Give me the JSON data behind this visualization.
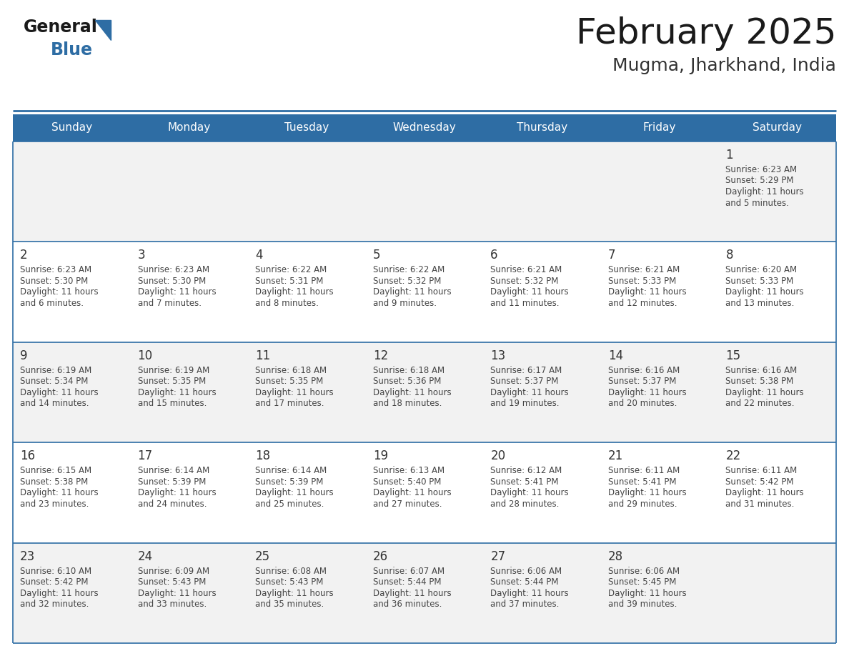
{
  "title": "February 2025",
  "subtitle": "Mugma, Jharkhand, India",
  "header_bg_color": "#2E6DA4",
  "header_text_color": "#FFFFFF",
  "cell_bg_even": "#F2F2F2",
  "cell_bg_odd": "#FFFFFF",
  "border_color": "#2E6DA4",
  "outer_border_color": "#2E6DA4",
  "day_names": [
    "Sunday",
    "Monday",
    "Tuesday",
    "Wednesday",
    "Thursday",
    "Friday",
    "Saturday"
  ],
  "title_color": "#1a1a1a",
  "subtitle_color": "#333333",
  "day_number_color": "#333333",
  "cell_text_color": "#444444",
  "logo_text_color": "#1a1a1a",
  "logo_blue_color": "#2E6DA4",
  "weeks": [
    [
      {
        "day": null,
        "sunrise": null,
        "sunset": null,
        "daylight": null
      },
      {
        "day": null,
        "sunrise": null,
        "sunset": null,
        "daylight": null
      },
      {
        "day": null,
        "sunrise": null,
        "sunset": null,
        "daylight": null
      },
      {
        "day": null,
        "sunrise": null,
        "sunset": null,
        "daylight": null
      },
      {
        "day": null,
        "sunrise": null,
        "sunset": null,
        "daylight": null
      },
      {
        "day": null,
        "sunrise": null,
        "sunset": null,
        "daylight": null
      },
      {
        "day": 1,
        "sunrise": "6:23 AM",
        "sunset": "5:29 PM",
        "daylight": "11 hours and 5 minutes."
      }
    ],
    [
      {
        "day": 2,
        "sunrise": "6:23 AM",
        "sunset": "5:30 PM",
        "daylight": "11 hours and 6 minutes."
      },
      {
        "day": 3,
        "sunrise": "6:23 AM",
        "sunset": "5:30 PM",
        "daylight": "11 hours and 7 minutes."
      },
      {
        "day": 4,
        "sunrise": "6:22 AM",
        "sunset": "5:31 PM",
        "daylight": "11 hours and 8 minutes."
      },
      {
        "day": 5,
        "sunrise": "6:22 AM",
        "sunset": "5:32 PM",
        "daylight": "11 hours and 9 minutes."
      },
      {
        "day": 6,
        "sunrise": "6:21 AM",
        "sunset": "5:32 PM",
        "daylight": "11 hours and 11 minutes."
      },
      {
        "day": 7,
        "sunrise": "6:21 AM",
        "sunset": "5:33 PM",
        "daylight": "11 hours and 12 minutes."
      },
      {
        "day": 8,
        "sunrise": "6:20 AM",
        "sunset": "5:33 PM",
        "daylight": "11 hours and 13 minutes."
      }
    ],
    [
      {
        "day": 9,
        "sunrise": "6:19 AM",
        "sunset": "5:34 PM",
        "daylight": "11 hours and 14 minutes."
      },
      {
        "day": 10,
        "sunrise": "6:19 AM",
        "sunset": "5:35 PM",
        "daylight": "11 hours and 15 minutes."
      },
      {
        "day": 11,
        "sunrise": "6:18 AM",
        "sunset": "5:35 PM",
        "daylight": "11 hours and 17 minutes."
      },
      {
        "day": 12,
        "sunrise": "6:18 AM",
        "sunset": "5:36 PM",
        "daylight": "11 hours and 18 minutes."
      },
      {
        "day": 13,
        "sunrise": "6:17 AM",
        "sunset": "5:37 PM",
        "daylight": "11 hours and 19 minutes."
      },
      {
        "day": 14,
        "sunrise": "6:16 AM",
        "sunset": "5:37 PM",
        "daylight": "11 hours and 20 minutes."
      },
      {
        "day": 15,
        "sunrise": "6:16 AM",
        "sunset": "5:38 PM",
        "daylight": "11 hours and 22 minutes."
      }
    ],
    [
      {
        "day": 16,
        "sunrise": "6:15 AM",
        "sunset": "5:38 PM",
        "daylight": "11 hours and 23 minutes."
      },
      {
        "day": 17,
        "sunrise": "6:14 AM",
        "sunset": "5:39 PM",
        "daylight": "11 hours and 24 minutes."
      },
      {
        "day": 18,
        "sunrise": "6:14 AM",
        "sunset": "5:39 PM",
        "daylight": "11 hours and 25 minutes."
      },
      {
        "day": 19,
        "sunrise": "6:13 AM",
        "sunset": "5:40 PM",
        "daylight": "11 hours and 27 minutes."
      },
      {
        "day": 20,
        "sunrise": "6:12 AM",
        "sunset": "5:41 PM",
        "daylight": "11 hours and 28 minutes."
      },
      {
        "day": 21,
        "sunrise": "6:11 AM",
        "sunset": "5:41 PM",
        "daylight": "11 hours and 29 minutes."
      },
      {
        "day": 22,
        "sunrise": "6:11 AM",
        "sunset": "5:42 PM",
        "daylight": "11 hours and 31 minutes."
      }
    ],
    [
      {
        "day": 23,
        "sunrise": "6:10 AM",
        "sunset": "5:42 PM",
        "daylight": "11 hours and 32 minutes."
      },
      {
        "day": 24,
        "sunrise": "6:09 AM",
        "sunset": "5:43 PM",
        "daylight": "11 hours and 33 minutes."
      },
      {
        "day": 25,
        "sunrise": "6:08 AM",
        "sunset": "5:43 PM",
        "daylight": "11 hours and 35 minutes."
      },
      {
        "day": 26,
        "sunrise": "6:07 AM",
        "sunset": "5:44 PM",
        "daylight": "11 hours and 36 minutes."
      },
      {
        "day": 27,
        "sunrise": "6:06 AM",
        "sunset": "5:44 PM",
        "daylight": "11 hours and 37 minutes."
      },
      {
        "day": 28,
        "sunrise": "6:06 AM",
        "sunset": "5:45 PM",
        "daylight": "11 hours and 39 minutes."
      },
      {
        "day": null,
        "sunrise": null,
        "sunset": null,
        "daylight": null
      }
    ]
  ]
}
